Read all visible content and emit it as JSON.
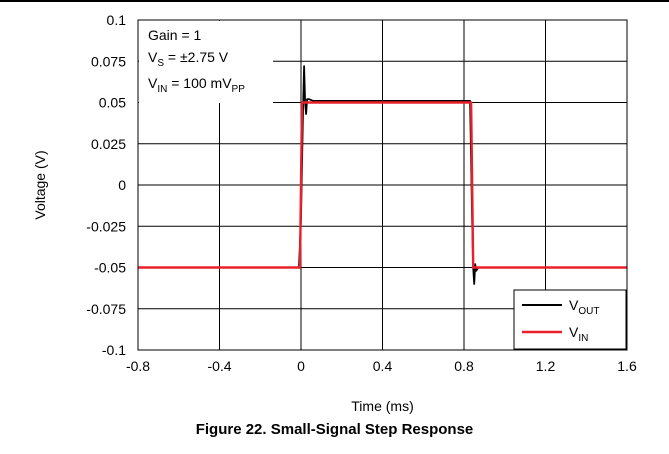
{
  "chart_data": {
    "type": "line",
    "xlabel": "Time (ms)",
    "ylabel": "Voltage (V)",
    "xlim": [
      -0.8,
      1.6
    ],
    "ylim": [
      -0.1,
      0.1
    ],
    "x_ticks": [
      -0.8,
      -0.4,
      0,
      0.4,
      0.8,
      1.2,
      1.6
    ],
    "x_tick_labels": [
      "-0.8",
      "-0.4",
      "0",
      "0.4",
      "0.8",
      "1.2",
      "1.6"
    ],
    "y_ticks": [
      -0.1,
      -0.075,
      -0.05,
      -0.025,
      0,
      0.025,
      0.05,
      0.075,
      0.1
    ],
    "y_tick_labels": [
      "-0.1",
      "-0.075",
      "-0.05",
      "-0.025",
      "0",
      "0.025",
      "0.05",
      "0.075",
      "0.1"
    ],
    "grid": true,
    "legend_position": "bottom-right",
    "annotations": [
      {
        "main": "Gain = 1",
        "sub": ""
      },
      {
        "main": "V",
        "sub": "S",
        "rest": " = ±2.75 V"
      },
      {
        "main": "V",
        "sub": "IN",
        "rest": " = 100 mV",
        "sub2": "PP"
      }
    ],
    "series": [
      {
        "name": "V",
        "name_sub": "OUT",
        "color": "#000000",
        "x": [
          -0.8,
          -0.01,
          0.0,
          0.01,
          0.015,
          0.02,
          0.025,
          0.03,
          0.04,
          0.06,
          0.1,
          0.5,
          0.82,
          0.83,
          0.84,
          0.845,
          0.85,
          0.855,
          0.86,
          0.87,
          0.9,
          1.2,
          1.6
        ],
        "y": [
          -0.05,
          -0.05,
          -0.02,
          0.045,
          0.072,
          0.05,
          0.043,
          0.052,
          0.052,
          0.051,
          0.051,
          0.051,
          0.051,
          0.051,
          -0.02,
          -0.05,
          -0.06,
          -0.048,
          -0.052,
          -0.05,
          -0.05,
          -0.05,
          -0.05
        ]
      },
      {
        "name": "V",
        "name_sub": "IN",
        "color": "#e8202a",
        "x": [
          -0.8,
          -0.005,
          0.005,
          0.835,
          0.845,
          1.6
        ],
        "y": [
          -0.05,
          -0.05,
          0.05,
          0.05,
          -0.05,
          -0.05
        ]
      }
    ]
  },
  "caption": "Figure 22. Small-Signal Step Response"
}
